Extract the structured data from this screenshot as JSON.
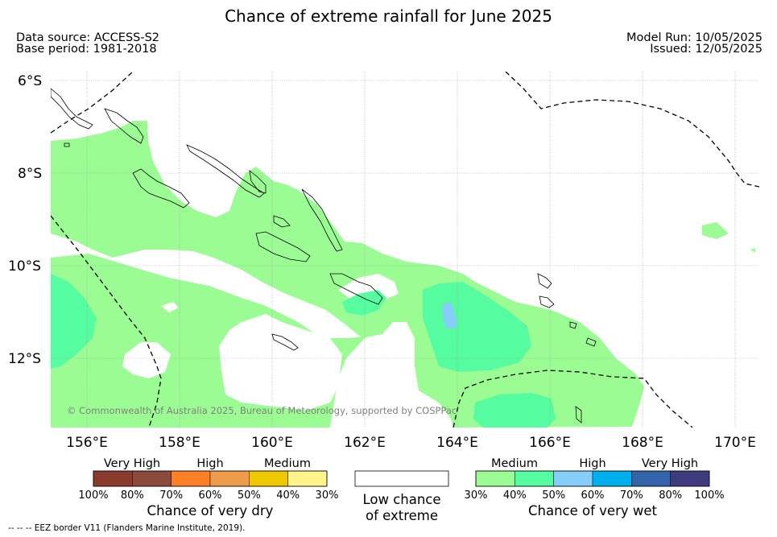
{
  "title": "Chance of extreme rainfall for June 2025",
  "meta": {
    "data_source": "Data source: ACCESS-S2",
    "base_period": "Base period: 1981-2018",
    "model_run": "Model Run: 10/05/2025",
    "issued": "Issued: 12/05/2025"
  },
  "map": {
    "lat_labels": [
      "6°S",
      "8°S",
      "10°S",
      "12°S"
    ],
    "lon_labels": [
      "156°E",
      "158°E",
      "160°E",
      "162°E",
      "164°E",
      "166°E",
      "168°E",
      "170°E"
    ],
    "copyright": "© Commonwealth of Australia 2025, Bureau of Meteorology, supported by COSPPac"
  },
  "legend": {
    "dry": {
      "categories": [
        "Very High",
        "High",
        "Medium"
      ],
      "ticks": [
        "100%",
        "80%",
        "70%",
        "60%",
        "50%",
        "40%",
        "30%"
      ],
      "title": "Chance of very dry",
      "colors": [
        "#8b3a2e",
        "#8b4a3a",
        "#ff7f24",
        "#ee9c4a",
        "#f0c800",
        "#fff58a"
      ]
    },
    "low": {
      "line1": "Low chance",
      "line2": "of extreme"
    },
    "wet": {
      "categories": [
        "Medium",
        "High",
        "Very High"
      ],
      "ticks": [
        "30%",
        "40%",
        "50%",
        "60%",
        "70%",
        "80%",
        "100%"
      ],
      "title": "Chance of very wet",
      "colors": [
        "#9cfc94",
        "#56fca0",
        "#86cdf9",
        "#00b0ee",
        "#3363a8",
        "#3f3a7e"
      ]
    }
  },
  "eez_note": "--  --  -- EEZ border V11 (Flanders Marine Institute, 2019)."
}
